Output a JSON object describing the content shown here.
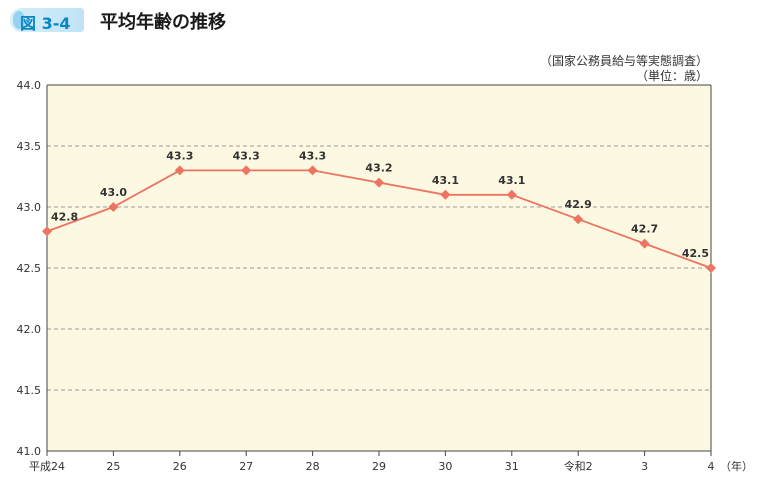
{
  "header": {
    "figure_label": "図 3-4",
    "title": "平均年齢の推移"
  },
  "notes": {
    "source": "（国家公務員給与等実態調査）",
    "unit": "（単位：歳）"
  },
  "colors": {
    "plot_background": "#fdf8e1",
    "line": "#ec7460",
    "gridline": "#9a9a9a",
    "axis": "#444444",
    "badge_text": "#0a86c8"
  },
  "chart_data": {
    "type": "line",
    "title": "平均年齢の推移",
    "xlabel": "（年）",
    "ylabel": "",
    "categories": [
      "平成24",
      "25",
      "26",
      "27",
      "28",
      "29",
      "30",
      "31",
      "令和2",
      "3",
      "4"
    ],
    "series": [
      {
        "values": [
          42.8,
          43.0,
          43.3,
          43.3,
          43.3,
          43.2,
          43.1,
          43.1,
          42.9,
          42.7,
          42.5
        ]
      }
    ],
    "data_labels": [
      "42.8",
      "43.0",
      "43.3",
      "43.3",
      "43.3",
      "43.2",
      "43.1",
      "43.1",
      "42.9",
      "42.7",
      "42.5"
    ],
    "ylim": [
      41.0,
      44.0
    ],
    "yticks": [
      41.0,
      41.5,
      42.0,
      42.5,
      43.0,
      43.5,
      44.0
    ],
    "ytick_labels": [
      "41.0",
      "41.5",
      "42.0",
      "42.5",
      "43.0",
      "43.5",
      "44.0"
    ],
    "grid": true,
    "marker": "diamond"
  }
}
